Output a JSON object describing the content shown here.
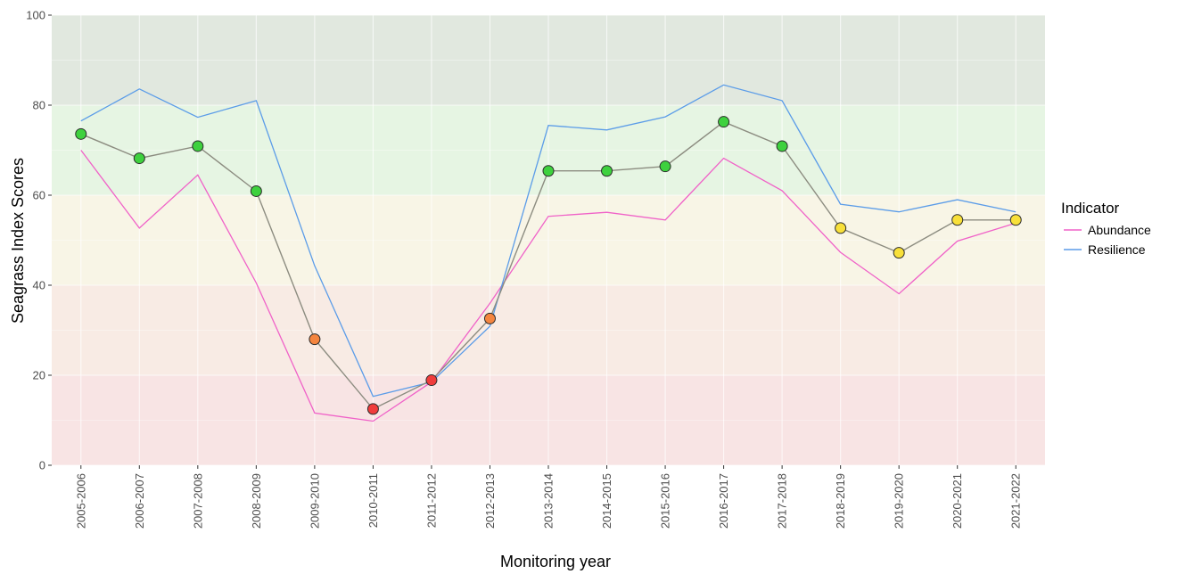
{
  "chart_data": {
    "type": "line",
    "xlabel": "Monitoring year",
    "ylabel": "Seagrass Index Scores",
    "ylim": [
      0,
      100
    ],
    "yticks": [
      0,
      20,
      40,
      60,
      80,
      100
    ],
    "grid": true,
    "legend_position": "right",
    "categories": [
      "2005-2006",
      "2006-2007",
      "2007-2008",
      "2008-2009",
      "2009-2010",
      "2010-2011",
      "2011-2012",
      "2012-2013",
      "2013-2014",
      "2014-2015",
      "2015-2016",
      "2016-2017",
      "2017-2018",
      "2018-2019",
      "2019-2020",
      "2020-2021",
      "2021-2022"
    ],
    "legend": {
      "title": "Indicator",
      "entries": [
        {
          "name": "Abundance",
          "color": "#f062c8"
        },
        {
          "name": "Resilience",
          "color": "#5b9ce8"
        }
      ]
    },
    "series": [
      {
        "name": "Abundance",
        "color": "#f062c8",
        "values": [
          70,
          52.7,
          64.5,
          40.5,
          11.6,
          9.8,
          18.5,
          36,
          55.3,
          56.2,
          54.5,
          68.2,
          61,
          47.3,
          38.1,
          49.8,
          53.8
        ]
      },
      {
        "name": "Resilience",
        "color": "#5b9ce8",
        "values": [
          76.5,
          83.6,
          77.3,
          81,
          44.3,
          15.3,
          18.5,
          30.9,
          75.5,
          74.5,
          77.4,
          84.5,
          81,
          58,
          56.3,
          59,
          56.3
        ]
      }
    ],
    "overall": {
      "color": "#8c8c80",
      "values": [
        73.6,
        68.2,
        70.9,
        60.9,
        28,
        12.5,
        18.9,
        32.6,
        65.4,
        65.4,
        66.4,
        76.3,
        70.9,
        52.7,
        47.2,
        54.5,
        54.5
      ],
      "point_colors": [
        "#3ed13e",
        "#3ed13e",
        "#3ed13e",
        "#3ed13e",
        "#f4853f",
        "#f03c3c",
        "#f03c3c",
        "#f4853f",
        "#3ed13e",
        "#3ed13e",
        "#3ed13e",
        "#3ed13e",
        "#3ed13e",
        "#f8e03a",
        "#f8e03a",
        "#f8e03a",
        "#f8e03a"
      ]
    },
    "bands": [
      {
        "from": 80,
        "to": 100,
        "color": "#e1e8df"
      },
      {
        "from": 60,
        "to": 80,
        "color": "#e6f5e3"
      },
      {
        "from": 40,
        "to": 60,
        "color": "#f8f5e6"
      },
      {
        "from": 20,
        "to": 40,
        "color": "#f8ebe4"
      },
      {
        "from": 0,
        "to": 20,
        "color": "#f8e4e4"
      }
    ]
  }
}
